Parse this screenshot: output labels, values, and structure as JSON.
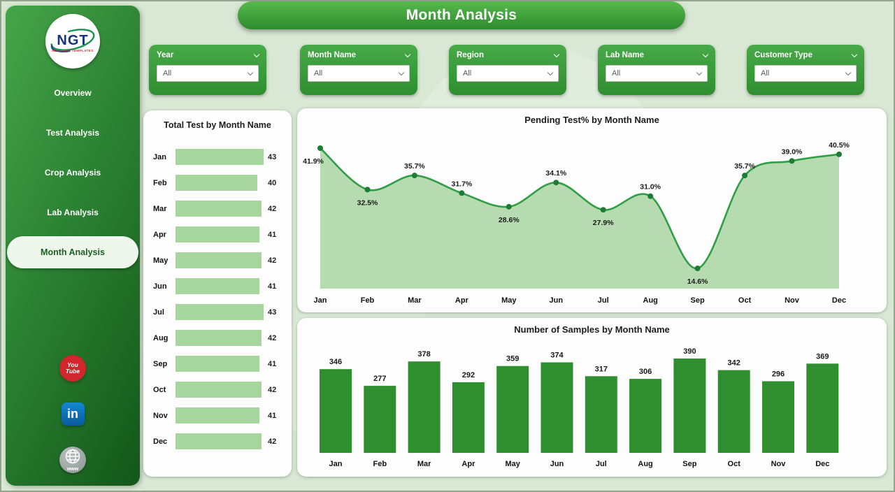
{
  "header": {
    "title": "Month Analysis"
  },
  "sidebar": {
    "logo": {
      "text": "NGT",
      "subtext": "NEXT GEN TEMPLATES"
    },
    "nav": [
      {
        "label": "Overview",
        "active": false
      },
      {
        "label": "Test Analysis",
        "active": false
      },
      {
        "label": "Crop Analysis",
        "active": false
      },
      {
        "label": "Lab Analysis",
        "active": false
      },
      {
        "label": "Month Analysis",
        "active": true
      }
    ],
    "social": [
      {
        "name": "youtube",
        "lines": [
          "You",
          "Tube"
        ]
      },
      {
        "name": "linkedin",
        "label": "in"
      },
      {
        "name": "website",
        "label": "www"
      }
    ]
  },
  "filters": [
    {
      "label": "Year",
      "value": "All"
    },
    {
      "label": "Month Name",
      "value": "All"
    },
    {
      "label": "Region",
      "value": "All"
    },
    {
      "label": "Lab Name",
      "value": "All"
    },
    {
      "label": "Customer Type",
      "value": "All"
    }
  ],
  "chart_data": [
    {
      "type": "bar",
      "orientation": "horizontal",
      "title": "Total Test by Month Name",
      "categories": [
        "Jan",
        "Feb",
        "Mar",
        "Apr",
        "May",
        "Jun",
        "Jul",
        "Aug",
        "Sep",
        "Oct",
        "Nov",
        "Dec"
      ],
      "values": [
        43,
        40,
        42,
        41,
        42,
        41,
        43,
        42,
        41,
        42,
        41,
        42
      ],
      "bar_color": "#a6d69e"
    },
    {
      "type": "area",
      "title": "Pending Test% by Month Name",
      "categories": [
        "Jan",
        "Feb",
        "Mar",
        "Apr",
        "May",
        "Jun",
        "Jul",
        "Aug",
        "Sep",
        "Oct",
        "Nov",
        "Dec"
      ],
      "values": [
        41.9,
        32.5,
        35.7,
        31.7,
        28.6,
        34.1,
        27.9,
        31.0,
        14.6,
        35.7,
        39.0,
        40.5
      ],
      "unit": "%",
      "label_below_indices": [
        0,
        1,
        4,
        6,
        8
      ],
      "line_color": "#2f9e45",
      "fill_color": "#b7dbb1",
      "marker_color": "#1e7c35",
      "y_axis_implied_min": 10
    },
    {
      "type": "bar",
      "orientation": "vertical",
      "title": "Number of Samples by Month Name",
      "categories": [
        "Jan",
        "Feb",
        "Mar",
        "Apr",
        "May",
        "Jun",
        "Jul",
        "Aug",
        "Sep",
        "Oct",
        "Nov",
        "Dec"
      ],
      "values": [
        346,
        277,
        378,
        292,
        359,
        374,
        317,
        306,
        390,
        342,
        296,
        369
      ],
      "bar_color": "#2f8f2f",
      "ylim": [
        0,
        390
      ]
    }
  ],
  "colors": {
    "accent": "#2f8f2f",
    "sidebar_dark": "#135719",
    "background": "#d8e8d4",
    "panel": "#fcfdfc",
    "banner": "#3da035",
    "hbar_fill": "#a6d69e",
    "line": "#2f9e45",
    "area_fill": "#b7dbb1"
  }
}
